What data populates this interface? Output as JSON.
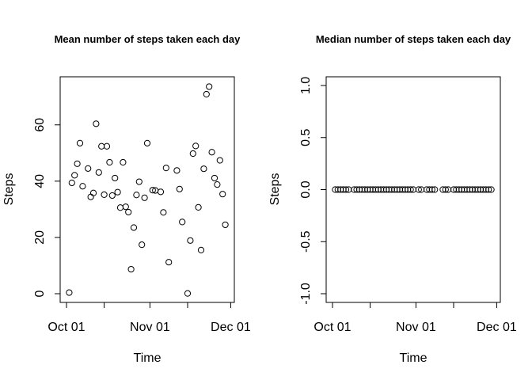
{
  "chart_data": [
    {
      "type": "scatter",
      "title": "Mean number of steps taken each day",
      "xlabel": "Time",
      "ylabel": "Steps",
      "xlim": [
        "2012-10-01",
        "2012-11-30"
      ],
      "ylim": [
        0,
        74
      ],
      "xticks": [
        {
          "value": "2012-10-01",
          "label": "Oct 01"
        },
        {
          "value": "2012-10-15",
          "label": ""
        },
        {
          "value": "2012-11-01",
          "label": "Nov 01"
        },
        {
          "value": "2012-11-15",
          "label": ""
        },
        {
          "value": "2012-12-01",
          "label": "Dec 01"
        }
      ],
      "yticks": [
        0,
        20,
        40,
        60
      ],
      "x": [
        "2012-10-02",
        "2012-10-03",
        "2012-10-04",
        "2012-10-05",
        "2012-10-06",
        "2012-10-07",
        "2012-10-09",
        "2012-10-10",
        "2012-10-11",
        "2012-10-12",
        "2012-10-13",
        "2012-10-14",
        "2012-10-15",
        "2012-10-16",
        "2012-10-17",
        "2012-10-18",
        "2012-10-19",
        "2012-10-20",
        "2012-10-21",
        "2012-10-22",
        "2012-10-23",
        "2012-10-24",
        "2012-10-25",
        "2012-10-26",
        "2012-10-27",
        "2012-10-28",
        "2012-10-29",
        "2012-10-30",
        "2012-10-31",
        "2012-11-02",
        "2012-11-03",
        "2012-11-05",
        "2012-11-06",
        "2012-11-07",
        "2012-11-08",
        "2012-11-11",
        "2012-11-12",
        "2012-11-13",
        "2012-11-15",
        "2012-11-16",
        "2012-11-17",
        "2012-11-18",
        "2012-11-19",
        "2012-11-20",
        "2012-11-21",
        "2012-11-22",
        "2012-11-23",
        "2012-11-24",
        "2012-11-25",
        "2012-11-26",
        "2012-11-27",
        "2012-11-28",
        "2012-11-29"
      ],
      "y": [
        0.4,
        39.4,
        42.1,
        46.2,
        53.5,
        38.2,
        44.5,
        34.4,
        35.8,
        60.4,
        43.1,
        52.4,
        35.2,
        52.4,
        46.7,
        34.9,
        41.1,
        36.1,
        30.6,
        46.7,
        30.9,
        29.0,
        8.7,
        23.5,
        35.1,
        39.8,
        17.4,
        34.1,
        53.5,
        36.8,
        36.7,
        36.2,
        28.9,
        44.7,
        11.2,
        43.8,
        37.2,
        25.5,
        0.1,
        18.9,
        49.8,
        52.5,
        30.7,
        15.5,
        44.4,
        70.9,
        73.6,
        50.3,
        41.1,
        38.8,
        47.4,
        35.4,
        24.5
      ]
    },
    {
      "type": "scatter",
      "title": "Median number of steps taken each day",
      "xlabel": "Time",
      "ylabel": "Steps",
      "xlim": [
        "2012-10-01",
        "2012-11-30"
      ],
      "ylim": [
        -1.0,
        1.0
      ],
      "xticks": [
        {
          "value": "2012-10-01",
          "label": "Oct 01"
        },
        {
          "value": "2012-10-15",
          "label": ""
        },
        {
          "value": "2012-11-01",
          "label": "Nov 01"
        },
        {
          "value": "2012-11-15",
          "label": ""
        },
        {
          "value": "2012-12-01",
          "label": "Dec 01"
        }
      ],
      "yticks": [
        "-1.0",
        "-0.5",
        "0.0",
        "0.5",
        "1.0"
      ],
      "x": [
        "2012-10-02",
        "2012-10-03",
        "2012-10-04",
        "2012-10-05",
        "2012-10-06",
        "2012-10-07",
        "2012-10-09",
        "2012-10-10",
        "2012-10-11",
        "2012-10-12",
        "2012-10-13",
        "2012-10-14",
        "2012-10-15",
        "2012-10-16",
        "2012-10-17",
        "2012-10-18",
        "2012-10-19",
        "2012-10-20",
        "2012-10-21",
        "2012-10-22",
        "2012-10-23",
        "2012-10-24",
        "2012-10-25",
        "2012-10-26",
        "2012-10-27",
        "2012-10-28",
        "2012-10-29",
        "2012-10-30",
        "2012-10-31",
        "2012-11-02",
        "2012-11-03",
        "2012-11-05",
        "2012-11-06",
        "2012-11-07",
        "2012-11-08",
        "2012-11-11",
        "2012-11-12",
        "2012-11-13",
        "2012-11-15",
        "2012-11-16",
        "2012-11-17",
        "2012-11-18",
        "2012-11-19",
        "2012-11-20",
        "2012-11-21",
        "2012-11-22",
        "2012-11-23",
        "2012-11-24",
        "2012-11-25",
        "2012-11-26",
        "2012-11-27",
        "2012-11-28",
        "2012-11-29"
      ],
      "y": [
        0,
        0,
        0,
        0,
        0,
        0,
        0,
        0,
        0,
        0,
        0,
        0,
        0,
        0,
        0,
        0,
        0,
        0,
        0,
        0,
        0,
        0,
        0,
        0,
        0,
        0,
        0,
        0,
        0,
        0,
        0,
        0,
        0,
        0,
        0,
        0,
        0,
        0,
        0,
        0,
        0,
        0,
        0,
        0,
        0,
        0,
        0,
        0,
        0,
        0,
        0,
        0,
        0
      ]
    }
  ]
}
